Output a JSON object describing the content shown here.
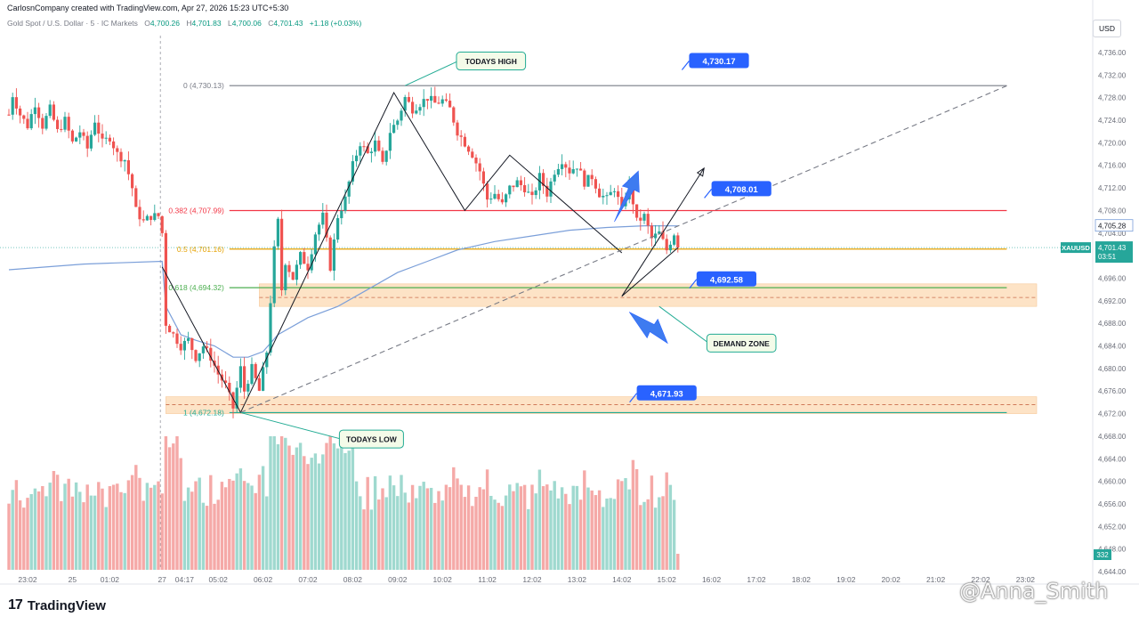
{
  "header": {
    "credit": "CarlosnCompany created with TradingView.com, Apr 27, 2026 15:23 UTC+5:30",
    "symbol": "Gold Spot / U.S. Dollar · 5 · IC Markets",
    "open_label": "O",
    "open": "4,700.26",
    "high_label": "H",
    "high": "4,701.83",
    "low_label": "L",
    "low": "4,700.06",
    "close_label": "C",
    "close": "4,701.43",
    "change": "+1.18 (+0.03%)",
    "currency_button": "USD"
  },
  "brand": {
    "logo": "17",
    "name": "TradingView"
  },
  "watermark": "@Anna_Smith",
  "colors": {
    "up": "#26a69a",
    "down": "#ef5350",
    "vol_up": "#9fd9cf",
    "vol_down": "#f5a9a7",
    "zone": "#fde3c6",
    "callout": "#2962ff",
    "ma": "#7b9fd9"
  },
  "chart_data": {
    "type": "candlestick",
    "y_axis": {
      "min": 4644,
      "max": 4739,
      "ticks": [
        "4,736.00",
        "4,732.00",
        "4,728.00",
        "4,724.00",
        "4,720.00",
        "4,716.00",
        "4,712.00",
        "4,708.00",
        "4,704.00",
        "4,700.00",
        "4,696.00",
        "4,692.00",
        "4,688.00",
        "4,684.00",
        "4,680.00",
        "4,676.00",
        "4,672.00",
        "4,668.00",
        "4,664.00",
        "4,660.00",
        "4,656.00",
        "4,652.00",
        "4,648.00",
        "4,644.00"
      ]
    },
    "x_axis": {
      "ticks": [
        {
          "label": "23:02",
          "t": 5
        },
        {
          "label": "25",
          "t": 17
        },
        {
          "label": "01:02",
          "t": 27
        },
        {
          "label": "27",
          "t": 41
        },
        {
          "label": "04:17",
          "t": 47
        },
        {
          "label": "05:02",
          "t": 56
        },
        {
          "label": "06:02",
          "t": 68
        },
        {
          "label": "07:02",
          "t": 80
        },
        {
          "label": "08:02",
          "t": 92
        },
        {
          "label": "09:02",
          "t": 104
        },
        {
          "label": "10:02",
          "t": 116
        },
        {
          "label": "11:02",
          "t": 128
        },
        {
          "label": "12:02",
          "t": 140
        },
        {
          "label": "13:02",
          "t": 152
        },
        {
          "label": "14:02",
          "t": 164
        },
        {
          "label": "15:02",
          "t": 176
        },
        {
          "label": "16:02",
          "t": 188
        },
        {
          "label": "17:02",
          "t": 200
        },
        {
          "label": "18:02",
          "t": 212
        },
        {
          "label": "19:02",
          "t": 224
        },
        {
          "label": "20:02",
          "t": 236
        },
        {
          "label": "21:02",
          "t": 248
        },
        {
          "label": "22:02",
          "t": 260
        },
        {
          "label": "23:02",
          "t": 272
        }
      ]
    },
    "session_break_t": 41,
    "close_anchors": [
      [
        0,
        4725
      ],
      [
        1,
        4728.5
      ],
      [
        3,
        4725
      ],
      [
        5,
        4723
      ],
      [
        7,
        4727
      ],
      [
        9,
        4723
      ],
      [
        11,
        4726
      ],
      [
        13,
        4722
      ],
      [
        15,
        4724
      ],
      [
        17,
        4720
      ],
      [
        19,
        4722
      ],
      [
        21,
        4719
      ],
      [
        23,
        4724
      ],
      [
        25,
        4720
      ],
      [
        27,
        4721
      ],
      [
        29,
        4718
      ],
      [
        31,
        4717
      ],
      [
        33,
        4712
      ],
      [
        34,
        4708
      ],
      [
        36,
        4706
      ],
      [
        38,
        4707
      ],
      [
        40,
        4707
      ],
      [
        41,
        4704
      ],
      [
        42,
        4688
      ],
      [
        44,
        4686
      ],
      [
        46,
        4684
      ],
      [
        48,
        4685
      ],
      [
        50,
        4682
      ],
      [
        52,
        4684
      ],
      [
        54,
        4682
      ],
      [
        56,
        4679
      ],
      [
        58,
        4677
      ],
      [
        60,
        4673
      ],
      [
        62,
        4680
      ],
      [
        63,
        4676
      ],
      [
        65,
        4680
      ],
      [
        67,
        4676
      ],
      [
        69,
        4683
      ],
      [
        70,
        4692
      ],
      [
        71,
        4701
      ],
      [
        72,
        4706
      ],
      [
        73,
        4694
      ],
      [
        74,
        4699
      ],
      [
        76,
        4696
      ],
      [
        78,
        4700
      ],
      [
        80,
        4698
      ],
      [
        82,
        4704
      ],
      [
        84,
        4707
      ],
      [
        86,
        4698
      ],
      [
        88,
        4707
      ],
      [
        90,
        4710
      ],
      [
        92,
        4716
      ],
      [
        94,
        4720
      ],
      [
        96,
        4718
      ],
      [
        98,
        4720
      ],
      [
        100,
        4716
      ],
      [
        102,
        4722
      ],
      [
        104,
        4724
      ],
      [
        106,
        4728
      ],
      [
        108,
        4726
      ],
      [
        110,
        4727
      ],
      [
        112,
        4728
      ],
      [
        114,
        4727
      ],
      [
        116,
        4727.5
      ],
      [
        118,
        4726
      ],
      [
        120,
        4722
      ],
      [
        122,
        4720
      ],
      [
        124,
        4718
      ],
      [
        126,
        4715
      ],
      [
        128,
        4710
      ],
      [
        130,
        4711
      ],
      [
        132,
        4709
      ],
      [
        134,
        4712
      ],
      [
        136,
        4713
      ],
      [
        138,
        4712
      ],
      [
        140,
        4710
      ],
      [
        142,
        4714
      ],
      [
        144,
        4711
      ],
      [
        146,
        4715
      ],
      [
        148,
        4717
      ],
      [
        150,
        4715
      ],
      [
        152,
        4716
      ],
      [
        154,
        4713
      ],
      [
        156,
        4714
      ],
      [
        158,
        4711
      ],
      [
        160,
        4710
      ],
      [
        162,
        4712
      ],
      [
        164,
        4708
      ],
      [
        166,
        4713
      ],
      [
        168,
        4706
      ],
      [
        170,
        4707
      ],
      [
        172,
        4703
      ],
      [
        174,
        4704
      ],
      [
        176,
        4701
      ],
      [
        178,
        4704
      ],
      [
        179,
        4701.43
      ]
    ],
    "last_bar_t": 179,
    "moving_average": [
      [
        0,
        4697.5
      ],
      [
        20,
        4698.5
      ],
      [
        41,
        4699
      ],
      [
        42,
        4691
      ],
      [
        46,
        4686
      ],
      [
        50,
        4685
      ],
      [
        55,
        4684
      ],
      [
        60,
        4682
      ],
      [
        64,
        4682
      ],
      [
        68,
        4683
      ],
      [
        72,
        4686
      ],
      [
        80,
        4689
      ],
      [
        88,
        4691
      ],
      [
        96,
        4694
      ],
      [
        104,
        4697
      ],
      [
        112,
        4699
      ],
      [
        120,
        4701
      ],
      [
        130,
        4702.5
      ],
      [
        140,
        4703.5
      ],
      [
        150,
        4704.5
      ],
      [
        160,
        4705
      ],
      [
        170,
        4705.3
      ],
      [
        179,
        4705.28
      ]
    ],
    "fibonacci": {
      "levels": [
        {
          "label": "0 (4,730.13)",
          "ratio": 0,
          "price": 4730.13,
          "color": "#787b86"
        },
        {
          "label": "0.382 (4,707.99)",
          "ratio": 0.382,
          "price": 4707.99,
          "color": "#f23645"
        },
        {
          "label": "0.5 (4,701.16)",
          "ratio": 0.5,
          "price": 4701.16,
          "color": "#e6a100"
        },
        {
          "label": "0.618 (4,694.32)",
          "ratio": 0.618,
          "price": 4694.32,
          "color": "#4caf50"
        },
        {
          "label": "1 (4,672.18)",
          "ratio": 1,
          "price": 4672.18,
          "color": "#22ab94"
        }
      ],
      "t_start": 59,
      "t_end": 267
    },
    "zones": [
      {
        "top": 4695,
        "bottom": 4691,
        "t_start": 67,
        "t_end": 275,
        "mid": 4692.58
      },
      {
        "top": 4675,
        "bottom": 4672,
        "t_start": 42,
        "t_end": 275,
        "mid": 4673.6
      }
    ],
    "price_labels": [
      {
        "text": "4,730.17",
        "price": 4734.5,
        "t": 182
      },
      {
        "text": "4,708.01",
        "price": 4711.8,
        "t": 188
      },
      {
        "text": "4,692.58",
        "price": 4695.8,
        "t": 184
      },
      {
        "text": "4,671.93",
        "price": 4675.6,
        "t": 168
      }
    ],
    "annotations": [
      {
        "text": "TODAYS HIGH",
        "t": 129,
        "price": 4734.5,
        "target_t": 106,
        "target_price": 4730.13
      },
      {
        "text": "TODAYS LOW",
        "t": 97,
        "price": 4667.5,
        "target_t": 62,
        "target_price": 4672.18
      },
      {
        "text": "DEMAND ZONE",
        "t": 196,
        "price": 4684.5,
        "target_t": 174,
        "target_price": 4691
      }
    ],
    "projection_path": [
      [
        179,
        4701.4
      ],
      [
        164,
        4692.8
      ],
      [
        186,
        4715.5
      ]
    ],
    "structure_path": [
      [
        41,
        4698
      ],
      [
        62,
        4672.2
      ],
      [
        103,
        4728.9
      ],
      [
        122,
        4708
      ],
      [
        134,
        4717.8
      ],
      [
        164,
        4700.5
      ]
    ],
    "trendline_dashed": [
      [
        62,
        4672.2
      ],
      [
        267,
        4730.1
      ]
    ],
    "arrows": [
      {
        "dir": "up",
        "t": 162,
        "price": 4706
      },
      {
        "dir": "down",
        "t": 166,
        "price": 4690
      }
    ],
    "current_price": {
      "symbol": "XAUUSD",
      "price": "4,701.43",
      "countdown": "03:51",
      "value": 4701.43
    },
    "ma_label": {
      "text": "4,705.28",
      "value": 4705.28
    },
    "volume_label": "332"
  }
}
